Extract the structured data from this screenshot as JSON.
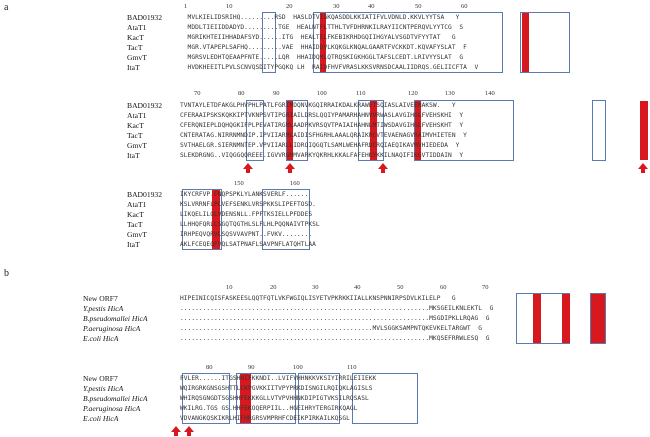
{
  "panel_a": {
    "label": "a",
    "block1": {
      "ruler": [
        "1",
        "10",
        "20",
        "30",
        "40",
        "50",
        "60"
      ],
      "names": [
        "BAD01932",
        "AtaT1",
        "KacT",
        "TacT",
        "GmvT",
        "ItaT"
      ],
      "seqs": [
        "  MVLKIELIDSRIHQ.........RSD  HASLDTVIGKQASDDLKKIATIFVLVDNLD.KKVLYYTSA   Y",
        "  MDDLTIEIIDDADYD.........TGE  HEALNTFLTTHLTVFDHRNKILRAYIICNTPERQVLYYTCG  S",
        "  MGRIKHTEIIHHADAFSYD......ITG  HEALTELFKEBIKRHDGQIIHGYALVSGDTVFYYTAT   G",
        "  MGR.VTAPEPLSAFHQ.........VAE  HHAIDDVLKQKGLKNQALGAARTFVCKKDT.KQVAFYSLAT  F",
        "  MGRSVLEDHTQEAAPFNTE.....LQR  HHAIDQMLQTRQSKIGKHGGLTAFSLCEDT.LRIVYYSLAT  G",
        "  HVDKHEEITLPVLSCNVQSDITYPGQKQ LH  RAIDFHVFVRASLKKSVRNSDCAALIIDRQS.GELIICFTA  V"
      ]
    },
    "block2": {
      "ruler": [
        "70",
        "80",
        "90",
        "100",
        "110",
        "120",
        "130",
        "140"
      ],
      "names": [
        "BAD01932",
        "AtaT1",
        "KacT",
        "TacT",
        "GmvT",
        "ItaT"
      ],
      "seqs": [
        "TVNTAYLETDFAKGLPHVPHLPATLFGRIMDQNVKGQIRRAIKDALKRAWETSQIASLAIVEENAKSW.   Y",
        "CFERAAIPSKSKQKKIPTVKNPSVTIPGRIAILDRSLQQIYPAMARHAHNVVRWASLAVGIHGLFVEHSKHI  Y",
        "CFERQNIEPLDQHQGKIFPLPEVATIRGMLAADPKVRSQVTPAIAIHAHNLMTIWSDAVGIHGLFVEHSKHT  Y",
        "CNTERATAG.NIRRNMNDIP.IPVIIARMLAIDISFHGRHLAAALQRAIKRCVTEVAENAGVRAIMVHIETEN  Y",
        "SVTHAELGR.SIERNMNTEP.VPVIIARLLIDRQIQGQTLSAMLWEHAFRDCRQIAEQIKAVMVHIEDEDA  Y",
        "SLEKDRGNG..VIQGGQQREEE.IGVVRGMMVARKYQKRHLKKALFAFEHKYKKILNAQIFIKGVTIDDAIN  Y"
      ],
      "arrows": [
        {
          "id": "arrow-a-95"
        },
        {
          "id": "arrow-a-113"
        },
        {
          "id": "arrow-a-132"
        },
        {
          "id": "arrow-a-end"
        }
      ]
    },
    "block3": {
      "ruler": [
        "150",
        "160"
      ],
      "names": [
        "BAD01932",
        "AtaT1",
        "KacT",
        "TacT",
        "GmvT",
        "ItaT"
      ],
      "seqs": [
        "IKYCRFVP.FNQPSPKLYLANKSVERLF......",
        "KSLVRRNFLPLVEFSENKLVRSPKKSLIPEFTOSD.",
        "LIKQELILQLVDENSNLL.FPFTKSIELLPFDDES",
        "LLHHQFQRLLSGQTQGTHLSLFLHLPQQNAIVTPKSL",
        "IRHPEQVQRVLSQSVVAVPNT..FVKV........",
        "AKLFCEQEQFVQLSATPNAFLSAVPNFLATQHTLAA"
      ]
    }
  },
  "panel_b": {
    "label": "b",
    "block1": {
      "ruler": [
        "10",
        "20",
        "30",
        "40",
        "50",
        "60",
        "70"
      ],
      "names": [
        "New ORF7",
        "Y.pestis HicA",
        "B.pseudomallei HicA",
        "P.aeruginosa HicA",
        "E.coli HicA"
      ],
      "seqs": [
        "HIPEINICQISFASKEESLQQTFQTLVKFWGIQLISYETVPKRKKIIALLKNSPNNIRPSDVLKILELP   G",
        "..................................................................MKSGEILKNLEKTL  G",
        "..................................................................MSGDIPKLLRQAG  G",
        "...................................................MVLSGGKSAMPNTQKEVKELTARGWT  G",
        "..................................................................MKQSEFRRWLESQ  G"
      ]
    },
    "block2": {
      "ruler": [
        "80",
        "90",
        "100",
        "110"
      ],
      "names": [
        "New ORF7",
        "Y.pestis HicA",
        "B.pseudomallei HicA",
        "P.aeruginosa HicA",
        "E.coli HicA"
      ],
      "seqs": [
        "FVLER......ITGSHHIFKKNDI..LVIFVHHNKKVKSIYIRRILEIIEKK",
        "WQIRGRKGNSGSHTTLCKPGVKKIITVPYPRKDISNGILRQIQKLAGISLS",
        "WHIRQSGNGDTSGSHHFEKKKGLLVTVPVHHNKDIPIGTVKSILRQSASL",
        "WKILRG.TGS GS.HHFEKOQERPIIL..HGEIHRYTERGIRKQAGL",
        "VDVANGKQSKIKRLHIFHRGRSVMPRHFCDEIKPIRKAILKQSGL"
      ],
      "arrows": [
        {
          "id": "arrow-b-1"
        },
        {
          "id": "arrow-b-2"
        }
      ]
    }
  }
}
